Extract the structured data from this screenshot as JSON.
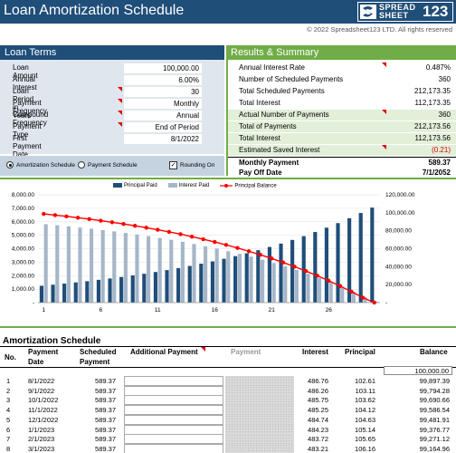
{
  "header": {
    "title": "Loan Amortization Schedule",
    "logo_line1": "SPREAD",
    "logo_line2": "SHEET",
    "logo_num": "123",
    "copyright": "© 2022 Spreadsheet123 LTD. All rights reserved"
  },
  "loan_terms": {
    "title": "Loan Terms",
    "rows": [
      {
        "label": "Loan Amount",
        "value": "100,000.00"
      },
      {
        "label": "Annual Interest",
        "value": "6.00%"
      },
      {
        "label": "Loan Period in Years",
        "value": "30"
      },
      {
        "label": "Payment Frequency",
        "value": "Monthly"
      },
      {
        "label": "Compound Frequency",
        "value": "Annual"
      },
      {
        "label": "Payment Type",
        "value": "End of Period"
      },
      {
        "label": "First Payment Date",
        "value": "8/1/2022"
      }
    ]
  },
  "options": {
    "amortization_schedule": "Amortization Schedule",
    "payment_schedule": "Payment Schedule",
    "rounding_on": "Rounding On",
    "rounding_checked": "✓"
  },
  "results": {
    "title": "Results & Summary",
    "rows": [
      {
        "label": "Annual Interest Rate",
        "value": "0.487%"
      },
      {
        "label": "Number of Scheduled Payments",
        "value": "360"
      },
      {
        "label": "Total Scheduled Payments",
        "value": "212,173.35"
      },
      {
        "label": "Total Interest",
        "value": "112,173.35"
      },
      {
        "label": "Actual Number of Payments",
        "value": "360"
      },
      {
        "label": "Total of Payments",
        "value": "212,173.56"
      },
      {
        "label": "Total Interest",
        "value": "112,173.56"
      },
      {
        "label": "Estimated Saved Interest",
        "value": "(0.21)"
      },
      {
        "label": "Monthly Payment",
        "value": "589.37"
      },
      {
        "label": "Pay Off Date",
        "value": "7/1/2052"
      }
    ]
  },
  "colors": {
    "principal": "#1f4e79",
    "interest": "#a6b6c9",
    "balance": "#ff0000",
    "green": "#70ad47"
  },
  "chart_data": {
    "type": "bar",
    "title": "",
    "legend": [
      "Principal Paid",
      "Interest Paid",
      "Principal Balance"
    ],
    "legend_position": "top",
    "x": [
      1,
      2,
      3,
      4,
      5,
      6,
      7,
      8,
      9,
      10,
      11,
      12,
      13,
      14,
      15,
      16,
      17,
      18,
      19,
      20,
      21,
      22,
      23,
      24,
      25,
      26,
      27,
      28,
      29,
      30
    ],
    "x_ticks": [
      "1",
      "6",
      "11",
      "16",
      "21",
      "26"
    ],
    "y_left_ticks": [
      "-",
      "1,000.00",
      "2,000.00",
      "3,000.00",
      "4,000.00",
      "5,000.00",
      "6,000.00",
      "7,000.00",
      "8,000.00"
    ],
    "y_right_ticks": [
      "-",
      "20,000.00",
      "40,000.00",
      "60,000.00",
      "80,000.00",
      "100,000.00",
      "120,000.00"
    ],
    "ylim_left": [
      0,
      8000
    ],
    "ylim_right": [
      0,
      120000
    ],
    "series": [
      {
        "name": "Principal Paid",
        "axis": "left",
        "values": [
          1250,
          1330,
          1410,
          1500,
          1590,
          1690,
          1790,
          1900,
          2020,
          2140,
          2270,
          2410,
          2560,
          2720,
          2890,
          3060,
          3250,
          3450,
          3660,
          3890,
          4130,
          4380,
          4650,
          4930,
          5240,
          5560,
          5900,
          6260,
          6650,
          7050
        ]
      },
      {
        "name": "Interest Paid",
        "axis": "left",
        "values": [
          5820,
          5740,
          5660,
          5570,
          5480,
          5380,
          5280,
          5170,
          5050,
          4930,
          4800,
          4660,
          4510,
          4350,
          4180,
          4010,
          3820,
          3620,
          3410,
          3180,
          2940,
          2690,
          2420,
          2140,
          1830,
          1510,
          1170,
          810,
          420,
          90
        ]
      },
      {
        "name": "Principal Balance",
        "axis": "right",
        "values": [
          98750,
          97420,
          96010,
          94510,
          92920,
          91230,
          89440,
          87540,
          85520,
          83380,
          81110,
          78700,
          76140,
          73420,
          70530,
          67470,
          64220,
          60770,
          57110,
          53220,
          49090,
          44710,
          40060,
          35130,
          29890,
          24330,
          18430,
          12170,
          5520,
          0
        ]
      }
    ]
  },
  "schedule": {
    "title": "Amortization Schedule",
    "headers": {
      "no": "No.",
      "payment_date_1": "Payment",
      "payment_date_2": "Date",
      "scheduled_1": "Scheduled",
      "scheduled_2": "Payment",
      "additional": "Additional Payment",
      "payment": "Payment",
      "interest": "Interest",
      "principal": "Principal",
      "balance": "Balance"
    },
    "opening_balance": "100,000.00",
    "rows": [
      {
        "no": "1",
        "date": "8/1/2022",
        "scheduled": "589.37",
        "interest": "486.76",
        "principal": "102.61",
        "balance": "99,897.39"
      },
      {
        "no": "2",
        "date": "9/1/2022",
        "scheduled": "589.37",
        "interest": "486.26",
        "principal": "103.11",
        "balance": "99,794.28"
      },
      {
        "no": "3",
        "date": "10/1/2022",
        "scheduled": "589.37",
        "interest": "485.75",
        "principal": "103.62",
        "balance": "99,690.66"
      },
      {
        "no": "4",
        "date": "11/1/2022",
        "scheduled": "589.37",
        "interest": "485.25",
        "principal": "104.12",
        "balance": "99,586.54"
      },
      {
        "no": "5",
        "date": "12/1/2022",
        "scheduled": "589.37",
        "interest": "484.74",
        "principal": "104.63",
        "balance": "99,481.91"
      },
      {
        "no": "6",
        "date": "1/1/2023",
        "scheduled": "589.37",
        "interest": "484.23",
        "principal": "105.14",
        "balance": "99,376.77"
      },
      {
        "no": "7",
        "date": "2/1/2023",
        "scheduled": "589.37",
        "interest": "483.72",
        "principal": "105.65",
        "balance": "99,271.12"
      },
      {
        "no": "8",
        "date": "3/1/2023",
        "scheduled": "589.37",
        "interest": "483.21",
        "principal": "106.16",
        "balance": "99,164.96"
      }
    ]
  }
}
